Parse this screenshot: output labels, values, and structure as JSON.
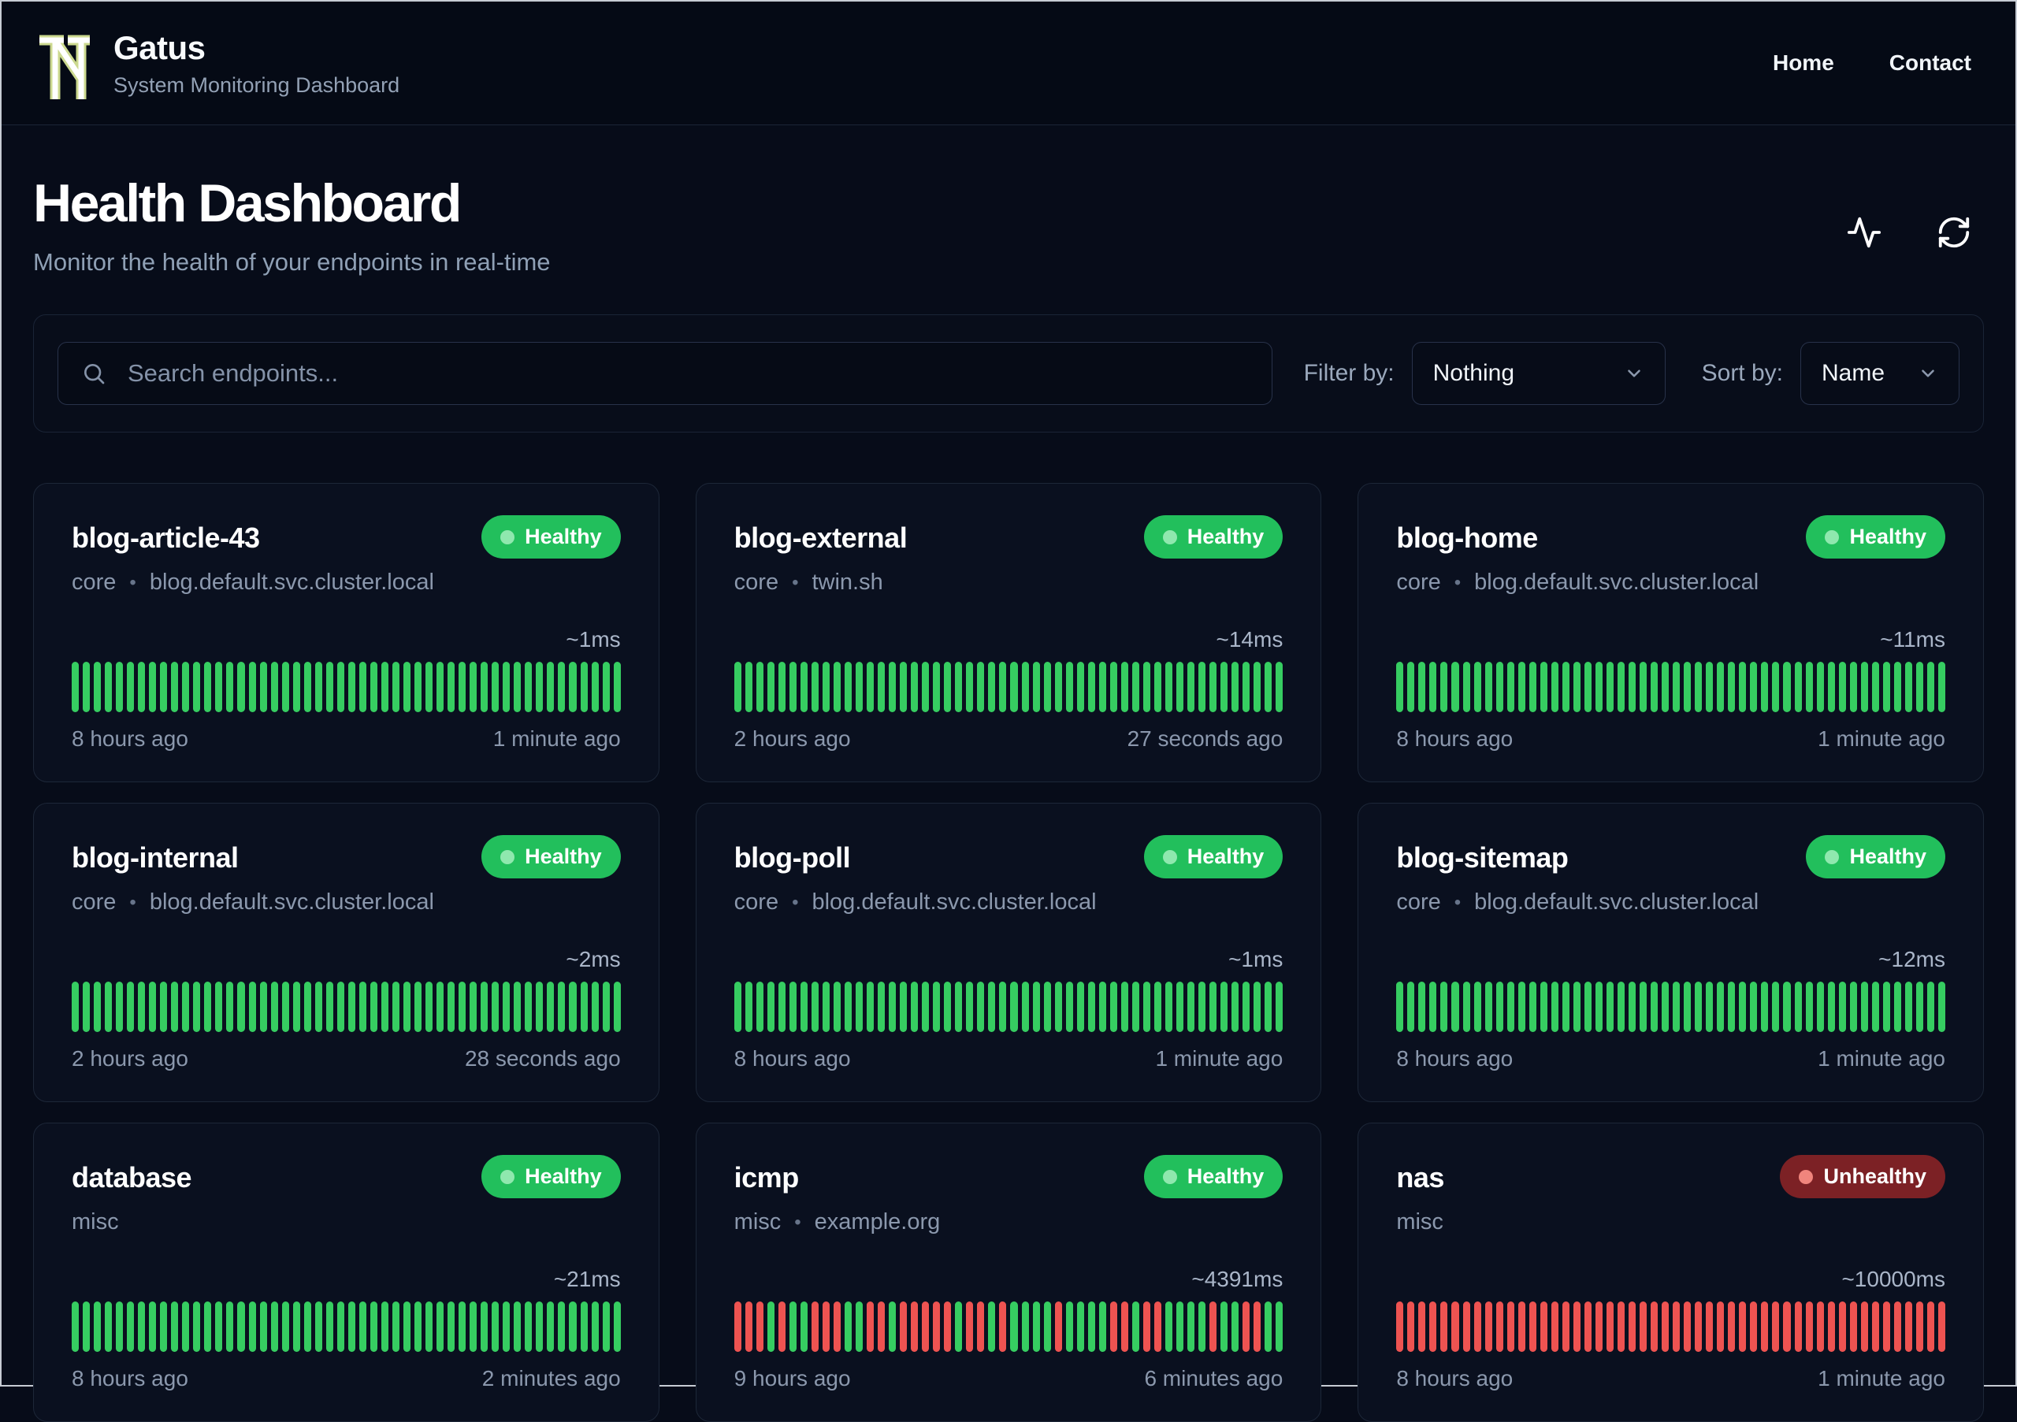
{
  "brand": {
    "name": "Gatus",
    "subtitle": "System Monitoring Dashboard",
    "logo_icon": "tn-monogram-icon"
  },
  "nav": {
    "links": [
      {
        "label": "Home"
      },
      {
        "label": "Contact"
      }
    ]
  },
  "page": {
    "title": "Health Dashboard",
    "subtitle": "Monitor the health of your endpoints in real-time",
    "header_icons": [
      "activity-icon",
      "refresh-icon"
    ]
  },
  "toolbar": {
    "search_placeholder": "Search endpoints...",
    "search_icon": "search-icon",
    "filter_label": "Filter by:",
    "filter_value": "Nothing",
    "sort_label": "Sort by:",
    "sort_value": "Name"
  },
  "colors": {
    "bg-page": "#070c19",
    "bg-nav": "#050a15",
    "bg-card": "#0a101f",
    "card-border": "#1d2738",
    "green": "#36cd61",
    "green-badge": "#22bf5c",
    "green-dot": "#8fe8ae",
    "red": "#ee5351",
    "red-badge": "#7c2125",
    "red-dot": "#f0857d",
    "logo-outline": "#ccd98f",
    "text-secondary": "#8b98ad"
  },
  "endpoints": [
    {
      "name": "blog-article-43",
      "group": "core",
      "host": "blog.default.svc.cluster.local",
      "status": "Healthy",
      "latency": "~1ms",
      "oldest": "8 hours ago",
      "newest": "1 minute ago",
      "bars": "UUUUUUUUUUUUUUUUUUUUUUUUUUUUUUUUUUUUUUUUUUUUUUUUUU"
    },
    {
      "name": "blog-external",
      "group": "core",
      "host": "twin.sh",
      "status": "Healthy",
      "latency": "~14ms",
      "oldest": "2 hours ago",
      "newest": "27 seconds ago",
      "bars": "UUUUUUUUUUUUUUUUUUUUUUUUUUUUUUUUUUUUUUUUUUUUUUUUUU"
    },
    {
      "name": "blog-home",
      "group": "core",
      "host": "blog.default.svc.cluster.local",
      "status": "Healthy",
      "latency": "~11ms",
      "oldest": "8 hours ago",
      "newest": "1 minute ago",
      "bars": "UUUUUUUUUUUUUUUUUUUUUUUUUUUUUUUUUUUUUUUUUUUUUUUUUU"
    },
    {
      "name": "blog-internal",
      "group": "core",
      "host": "blog.default.svc.cluster.local",
      "status": "Healthy",
      "latency": "~2ms",
      "oldest": "2 hours ago",
      "newest": "28 seconds ago",
      "bars": "UUUUUUUUUUUUUUUUUUUUUUUUUUUUUUUUUUUUUUUUUUUUUUUUUU"
    },
    {
      "name": "blog-poll",
      "group": "core",
      "host": "blog.default.svc.cluster.local",
      "status": "Healthy",
      "latency": "~1ms",
      "oldest": "8 hours ago",
      "newest": "1 minute ago",
      "bars": "UUUUUUUUUUUUUUUUUUUUUUUUUUUUUUUUUUUUUUUUUUUUUUUUUU"
    },
    {
      "name": "blog-sitemap",
      "group": "core",
      "host": "blog.default.svc.cluster.local",
      "status": "Healthy",
      "latency": "~12ms",
      "oldest": "8 hours ago",
      "newest": "1 minute ago",
      "bars": "UUUUUUUUUUUUUUUUUUUUUUUUUUUUUUUUUUUUUUUUUUUUUUUUUU"
    },
    {
      "name": "database",
      "group": "misc",
      "host": null,
      "status": "Healthy",
      "latency": "~21ms",
      "oldest": "8 hours ago",
      "newest": "2 minutes ago",
      "bars": "UUUUUUUUUUUUUUUUUUUUUUUUUUUUUUUUUUUUUUUUUUUUUUUUUU"
    },
    {
      "name": "icmp",
      "group": "misc",
      "host": "example.org",
      "status": "Healthy",
      "latency": "~4391ms",
      "oldest": "9 hours ago",
      "newest": "6 minutes ago",
      "bars": "DDDUDUUDDDUUDDUDDDDDUDDUDUUUUDUUUUDDUDDUUUUDUUDDUU"
    },
    {
      "name": "nas",
      "group": "misc",
      "host": null,
      "status": "Unhealthy",
      "latency": "~10000ms",
      "oldest": "8 hours ago",
      "newest": "1 minute ago",
      "bars": "DDDDDDDDDDDDDDDDDDDDDDDDDDDDDDDDDDDDDDDDDDDDDDDDDD"
    }
  ]
}
